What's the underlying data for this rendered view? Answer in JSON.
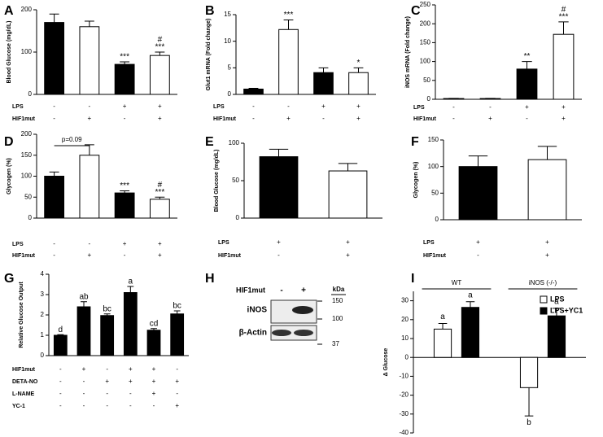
{
  "chart_data": [
    {
      "panel": "A",
      "type": "bar",
      "ylabel": "Blood Glucose (mg/dL)",
      "ylim": [
        0,
        200
      ],
      "yticks": [
        0,
        100,
        200
      ],
      "values": [
        170,
        160,
        71,
        92
      ],
      "errors": [
        20,
        13,
        6,
        8
      ],
      "colors": [
        "#000000",
        "#ffffff",
        "#000000",
        "#ffffff"
      ],
      "annotations": [
        [],
        [],
        [
          "***"
        ],
        [
          "#",
          "***"
        ]
      ],
      "conditions": [
        {
          "name": "LPS",
          "values": [
            "-",
            "-",
            "+",
            "+"
          ]
        },
        {
          "name": "HIF1mut",
          "values": [
            "-",
            "+",
            "-",
            "+"
          ]
        }
      ]
    },
    {
      "panel": "B",
      "type": "bar",
      "ylabel": "Glut1 mRNA (Fold change)",
      "ylim": [
        0,
        15
      ],
      "yticks": [
        0,
        5,
        10,
        15
      ],
      "values": [
        1,
        12.2,
        4.1,
        4.1
      ],
      "errors": [
        0.15,
        1.8,
        0.9,
        0.9
      ],
      "colors": [
        "#000000",
        "#ffffff",
        "#000000",
        "#ffffff"
      ],
      "annotations": [
        [],
        [
          "***"
        ],
        [],
        [
          "*"
        ]
      ],
      "conditions": [
        {
          "name": "LPS",
          "values": [
            "-",
            "-",
            "+",
            "+"
          ]
        },
        {
          "name": "HIF1mut",
          "values": [
            "-",
            "+",
            "-",
            "+"
          ]
        }
      ]
    },
    {
      "panel": "C",
      "type": "bar",
      "ylabel": "iNOS mRNA (Fold change)",
      "ylim": [
        0,
        250
      ],
      "yticks": [
        0,
        50,
        100,
        150,
        200,
        250
      ],
      "values": [
        2,
        2,
        80,
        172
      ],
      "errors": [
        0.5,
        0.5,
        20,
        33
      ],
      "colors": [
        "#000000",
        "#ffffff",
        "#000000",
        "#ffffff"
      ],
      "annotations": [
        [],
        [],
        [
          "**"
        ],
        [
          "#",
          "***"
        ]
      ],
      "conditions": [
        {
          "name": "LPS",
          "values": [
            "-",
            "-",
            "+",
            "+"
          ]
        },
        {
          "name": "HIF1mut",
          "values": [
            "-",
            "+",
            "-",
            "+"
          ]
        }
      ]
    },
    {
      "panel": "D",
      "type": "bar",
      "ylabel": "Glycogen (%)",
      "ylim": [
        0,
        200
      ],
      "yticks": [
        0,
        50,
        100,
        150,
        200
      ],
      "values": [
        100,
        150,
        60,
        45
      ],
      "errors": [
        10,
        25,
        5,
        5
      ],
      "colors": [
        "#000000",
        "#ffffff",
        "#000000",
        "#ffffff"
      ],
      "annotations": [
        [],
        [],
        [
          "***"
        ],
        [
          "#",
          "***"
        ]
      ],
      "bracket_label": "p=0.09",
      "conditions": [
        {
          "name": "LPS",
          "values": [
            "-",
            "-",
            "+",
            "+"
          ]
        },
        {
          "name": "HIF1mut",
          "values": [
            "-",
            "+",
            "-",
            "+"
          ]
        }
      ]
    },
    {
      "panel": "E",
      "type": "bar",
      "ylabel": "Blood Glucose (mg/dL)",
      "ylim": [
        0,
        100
      ],
      "yticks": [
        0,
        50,
        100
      ],
      "values": [
        82,
        63
      ],
      "errors": [
        10,
        10
      ],
      "colors": [
        "#000000",
        "#ffffff"
      ],
      "annotations": [
        [],
        []
      ],
      "conditions": [
        {
          "name": "LPS",
          "values": [
            "+",
            "+"
          ]
        },
        {
          "name": "HIF1mut",
          "values": [
            "-",
            "+"
          ]
        }
      ]
    },
    {
      "panel": "F",
      "type": "bar",
      "ylabel": "Glycogen (%)",
      "ylim": [
        0,
        150
      ],
      "yticks": [
        0,
        50,
        100,
        150
      ],
      "values": [
        100,
        113
      ],
      "errors": [
        20,
        25
      ],
      "colors": [
        "#000000",
        "#ffffff"
      ],
      "annotations": [
        [],
        []
      ],
      "conditions": [
        {
          "name": "LPS",
          "values": [
            "+",
            "+"
          ]
        },
        {
          "name": "HIF1mut",
          "values": [
            "-",
            "+"
          ]
        }
      ]
    },
    {
      "panel": "G",
      "type": "bar",
      "ylabel": "Relative Glucose Output",
      "ylim": [
        0,
        4
      ],
      "yticks": [
        0,
        1,
        2,
        3,
        4
      ],
      "values": [
        1.0,
        2.4,
        1.97,
        3.1,
        1.25,
        2.05
      ],
      "errors": [
        0.03,
        0.25,
        0.08,
        0.3,
        0.08,
        0.15
      ],
      "colors": [
        "#000000",
        "#000000",
        "#000000",
        "#000000",
        "#000000",
        "#000000"
      ],
      "annotations": [
        [
          "d"
        ],
        [
          "ab"
        ],
        [
          "bc"
        ],
        [
          "a"
        ],
        [
          "cd"
        ],
        [
          "bc"
        ]
      ],
      "conditions": [
        {
          "name": "HIF1mut",
          "values": [
            "-",
            "+",
            "-",
            "+",
            "+",
            "-"
          ]
        },
        {
          "name": "DETA-NO",
          "values": [
            "-",
            "-",
            "+",
            "+",
            "+",
            "+"
          ]
        },
        {
          "name": "L-NAME",
          "values": [
            "-",
            "-",
            "-",
            "-",
            "+",
            "-"
          ]
        },
        {
          "name": "YC-1",
          "values": [
            "-",
            "-",
            "-",
            "-",
            "-",
            "+"
          ]
        }
      ]
    },
    {
      "panel": "I",
      "type": "grouped_bar",
      "ylabel": "Δ Glucose",
      "ylim": [
        -40,
        35
      ],
      "yticks": [
        -40,
        -30,
        -20,
        -10,
        0,
        10,
        20,
        30
      ],
      "categories": [
        "WT",
        "iNOS (-/-)"
      ],
      "legend": "right",
      "series": [
        {
          "name": "LPS",
          "color": "#ffffff",
          "values": [
            15,
            -16
          ],
          "errors": [
            3,
            15
          ],
          "labels": [
            "a",
            "b"
          ]
        },
        {
          "name": "LPS+YC1",
          "color": "#000000",
          "values": [
            26.5,
            22
          ],
          "errors": [
            3,
            4
          ],
          "labels": [
            "a",
            "a"
          ]
        }
      ]
    }
  ],
  "blot": {
    "panel": "H",
    "header": "HIF1mut",
    "lanes": [
      "-",
      "+"
    ],
    "unit": "kDa",
    "rows": [
      "iNOS",
      "β-Actin"
    ],
    "markers": [
      "150",
      "100",
      "37"
    ]
  }
}
